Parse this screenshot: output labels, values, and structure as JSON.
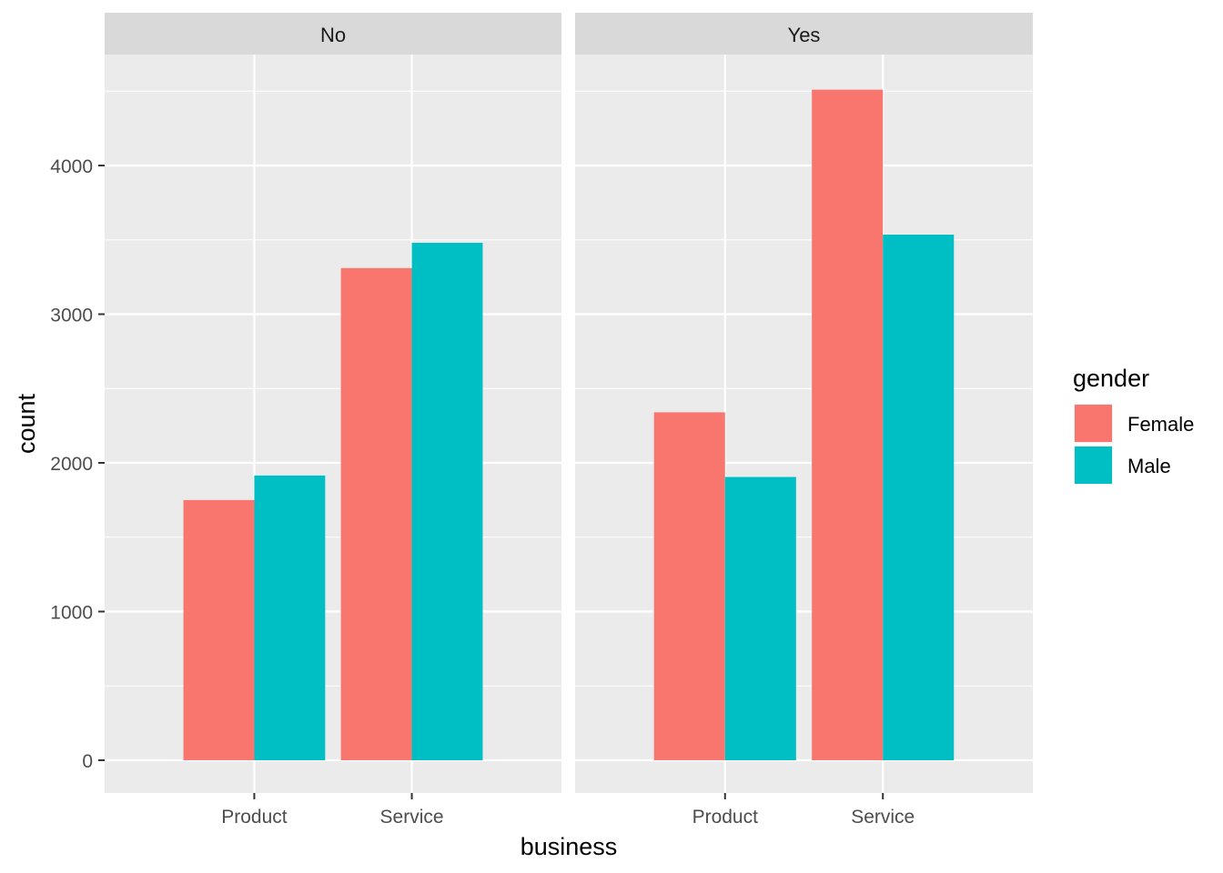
{
  "chart_data": {
    "type": "bar",
    "layout": "faceted",
    "xlabel": "business",
    "ylabel": "count",
    "ylim": [
      0,
      4750
    ],
    "yticks": [
      0,
      1000,
      2000,
      3000,
      4000
    ],
    "categories": [
      "Product",
      "Service"
    ],
    "legend": {
      "title": "gender",
      "placement": "right",
      "entries": [
        {
          "name": "Female",
          "color": "#F8766D"
        },
        {
          "name": "Male",
          "color": "#00BFC4"
        }
      ]
    },
    "facets": [
      {
        "label": "No",
        "series": [
          {
            "name": "Female",
            "values": [
              1750,
              3310
            ]
          },
          {
            "name": "Male",
            "values": [
              1915,
              3480
            ]
          }
        ]
      },
      {
        "label": "Yes",
        "series": [
          {
            "name": "Female",
            "values": [
              2340,
              4510
            ]
          },
          {
            "name": "Male",
            "values": [
              1905,
              3535
            ]
          }
        ]
      }
    ],
    "grid": true,
    "colors": {
      "panel_background": "#EBEBEB",
      "strip_background": "#D9D9D9",
      "grid_line": "#FFFFFF"
    }
  }
}
